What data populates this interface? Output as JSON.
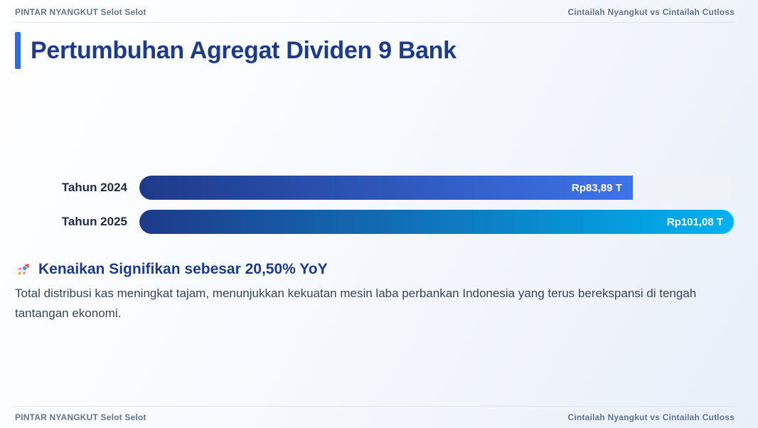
{
  "header": {
    "left": "PINTAR NYANGKUT Selot Selot",
    "right": "Cintailah Nyangkut vs Cintailah Cutloss"
  },
  "footer": {
    "left": "PINTAR NYANGKUT Selot Selot",
    "right": "Cintailah Nyangkut vs Cintailah Cutloss"
  },
  "title": "Pertumbuhan Agregat Dividen 9 Bank",
  "insight": {
    "icon": "rocket-icon",
    "heading": "Kenaikan Signifikan sebesar 20,50% YoY",
    "body": "Total distribusi kas meningkat tajam, menunjukkan kekuatan mesin laba perbankan Indonesia yang terus berekspansi di tengah tantangan ekonomi."
  },
  "colors": {
    "accent_blue": "#2f6ce0",
    "title_navy": "#1e3a8a",
    "header_text": "#62748e",
    "label_navy": "#1f2b45",
    "body_text": "#374357",
    "track": "#eff2f6",
    "value_text": "#ffffff",
    "bar_start": "#1e3a8a",
    "bar_2024_end": "#3e73ea",
    "bar_2025_end": "#00b2f0"
  },
  "chart_data": {
    "type": "bar",
    "orientation": "horizontal",
    "categories": [
      "Tahun 2024",
      "Tahun 2025"
    ],
    "values": [
      83.89,
      101.08
    ],
    "value_labels": [
      "Rp83,89 T",
      "Rp101,08 T"
    ],
    "xlim": [
      0,
      101.08
    ],
    "grid": false,
    "legend": false,
    "value_label_position": "inside-end"
  }
}
